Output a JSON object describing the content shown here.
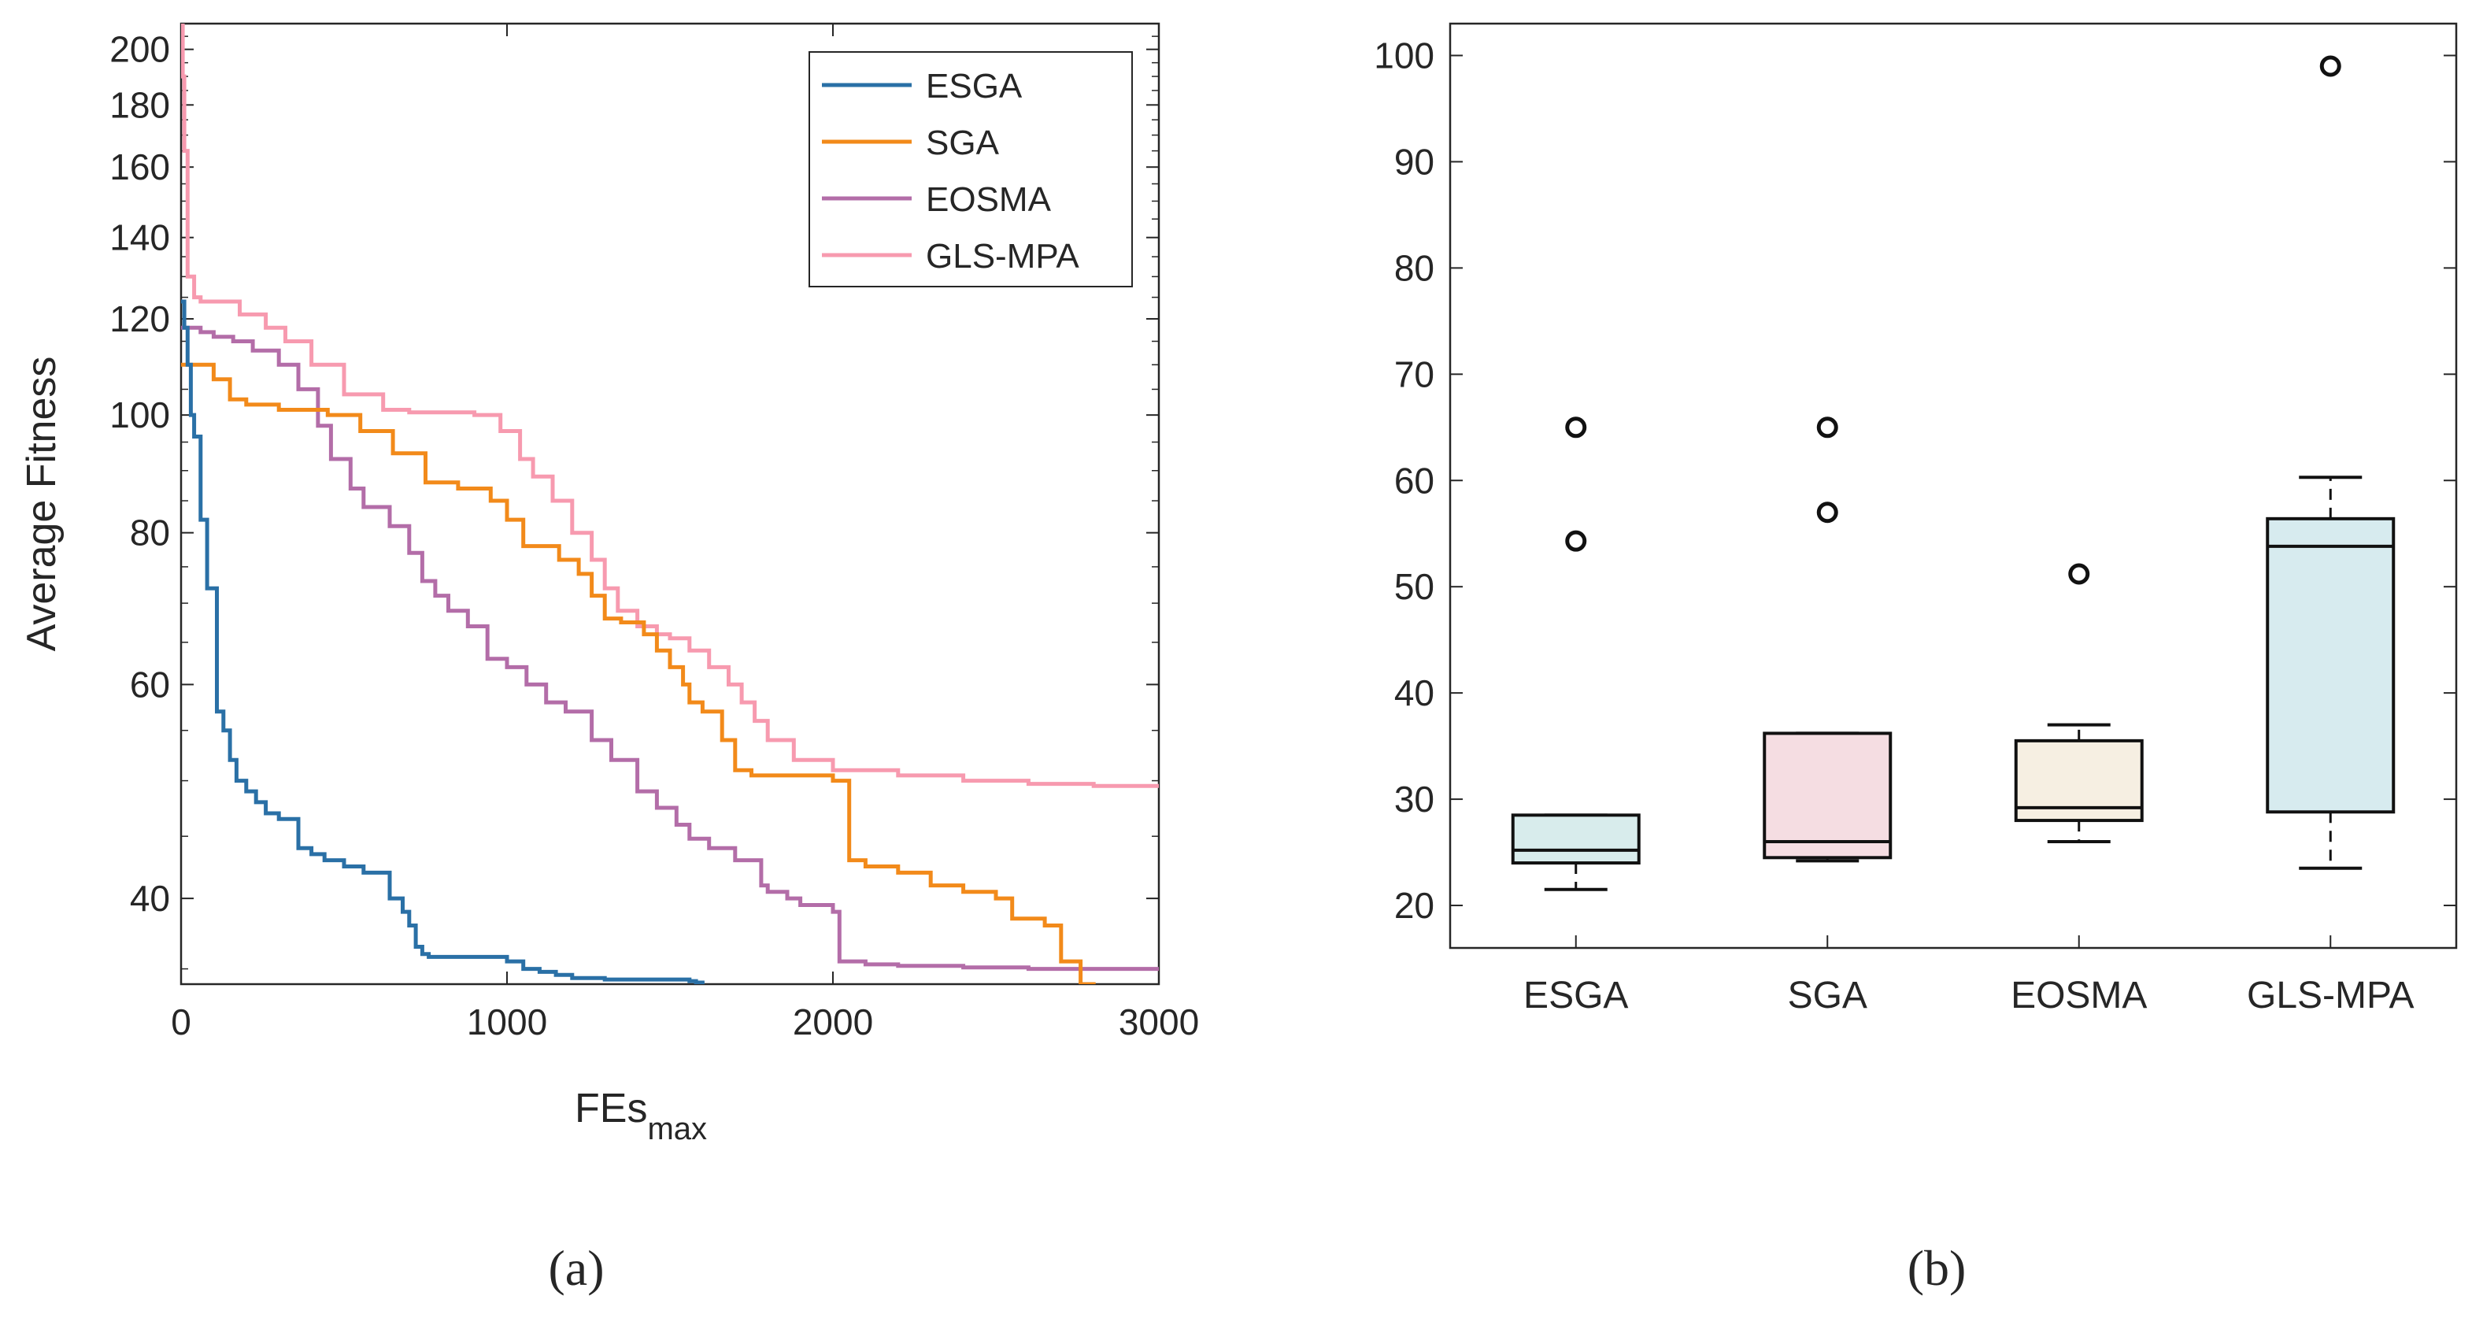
{
  "chart_data": [
    {
      "id": "a",
      "type": "line",
      "y_scale": "log",
      "xlabel": "FEs",
      "xlabel_sub": "max",
      "ylabel": "Average Fitness",
      "xlim": [
        0,
        3000
      ],
      "ylim": [
        34,
        210
      ],
      "xticks": [
        0,
        1000,
        2000,
        3000
      ],
      "xtick_labels": [
        "0",
        "1000",
        "2000",
        "3000"
      ],
      "yticks": [
        40,
        60,
        80,
        100,
        120,
        140,
        160,
        180,
        200
      ],
      "ytick_labels": [
        "40",
        "60",
        "80",
        "100",
        "120",
        "140",
        "160",
        "180",
        "200"
      ],
      "legend_position": "top-right",
      "panel_label": "(a)",
      "series": [
        {
          "name": "ESGA",
          "color": "#2a70a6",
          "x": [
            0,
            10,
            20,
            30,
            40,
            60,
            80,
            110,
            130,
            150,
            170,
            200,
            230,
            260,
            300,
            360,
            400,
            440,
            500,
            560,
            640,
            680,
            700,
            720,
            740,
            760,
            1000,
            1050,
            1100,
            1150,
            1200,
            1300,
            1560,
            1580,
            1600,
            1620,
            1640,
            1700,
            1750,
            3000
          ],
          "y": [
            124,
            118,
            110,
            100,
            96,
            82,
            72,
            57,
            55,
            52,
            50,
            49,
            48,
            47,
            46.5,
            44,
            43.5,
            43,
            42.5,
            42,
            40,
            39,
            38,
            36.5,
            36,
            35.8,
            35.5,
            35,
            34.8,
            34.6,
            34.4,
            34.3,
            34.2,
            34.1,
            33.6,
            33.3,
            33.2,
            33.1,
            33.0,
            33.0
          ]
        },
        {
          "name": "SGA",
          "color": "#f28a1a",
          "x": [
            0,
            100,
            150,
            200,
            300,
            450,
            550,
            650,
            750,
            850,
            950,
            1000,
            1050,
            1100,
            1160,
            1220,
            1260,
            1300,
            1350,
            1420,
            1460,
            1500,
            1540,
            1560,
            1600,
            1660,
            1700,
            1750,
            2000,
            2050,
            2100,
            2200,
            2300,
            2400,
            2500,
            2550,
            2650,
            2700,
            2760,
            2800,
            2900,
            3000
          ],
          "y": [
            110,
            107,
            103,
            102,
            101,
            100,
            97,
            93,
            88,
            87,
            85,
            82,
            78,
            78,
            76,
            74,
            71,
            68,
            67.5,
            66,
            64,
            62,
            60,
            58,
            57,
            54,
            51,
            50.5,
            50,
            43,
            42.5,
            42,
            41,
            40.5,
            40,
            38.5,
            38,
            35.5,
            34,
            33.5,
            33.2,
            33.2
          ]
        },
        {
          "name": "EOSMA",
          "color": "#b36da8",
          "x": [
            0,
            60,
            100,
            160,
            220,
            300,
            360,
            420,
            460,
            520,
            560,
            640,
            700,
            740,
            780,
            820,
            880,
            940,
            1000,
            1060,
            1120,
            1180,
            1260,
            1320,
            1400,
            1460,
            1520,
            1560,
            1620,
            1700,
            1780,
            1800,
            1860,
            1900,
            2000,
            2020,
            2100,
            2200,
            2400,
            2600,
            3000
          ],
          "y": [
            118,
            117,
            116,
            115,
            113,
            110,
            105,
            98,
            92,
            87,
            84,
            81,
            77,
            73,
            71,
            69,
            67,
            63,
            62,
            60,
            58,
            57,
            54,
            52,
            49,
            47.5,
            46,
            44.8,
            44,
            43,
            41,
            40.5,
            40,
            39.5,
            39,
            35.5,
            35.3,
            35.2,
            35.1,
            35.0,
            35.0
          ]
        },
        {
          "name": "GLS-MPA",
          "color": "#f79aaf",
          "x": [
            0,
            5,
            10,
            20,
            40,
            60,
            180,
            260,
            320,
            400,
            500,
            620,
            700,
            900,
            980,
            1040,
            1080,
            1140,
            1200,
            1260,
            1300,
            1340,
            1400,
            1460,
            1500,
            1560,
            1620,
            1680,
            1720,
            1760,
            1800,
            1880,
            2000,
            2200,
            2400,
            2600,
            2800,
            3000
          ],
          "y": [
            210,
            190,
            165,
            130,
            125,
            124,
            121,
            118,
            115,
            110,
            104,
            101,
            100.5,
            100,
            97,
            92,
            89,
            85,
            80,
            76,
            72,
            69,
            67,
            66,
            65.5,
            64,
            62,
            60,
            58,
            56,
            54,
            52,
            51,
            50.5,
            50,
            49.7,
            49.5,
            49.5
          ]
        }
      ]
    },
    {
      "id": "b",
      "type": "box",
      "ylim": [
        16,
        103
      ],
      "yticks": [
        20,
        30,
        40,
        50,
        60,
        70,
        80,
        90,
        100
      ],
      "ytick_labels": [
        "20",
        "30",
        "40",
        "50",
        "60",
        "70",
        "80",
        "90",
        "100"
      ],
      "categories": [
        "ESGA",
        "SGA",
        "EOSMA",
        "GLS-MPA"
      ],
      "panel_label": "(b)",
      "boxes": [
        {
          "name": "ESGA",
          "whisker_low": 21.5,
          "q1": 24,
          "median": 25.2,
          "q3": 28.5,
          "whisker_high": 28.5,
          "outliers": [
            54.3,
            65
          ],
          "fill": "#d8ecec"
        },
        {
          "name": "SGA",
          "whisker_low": 24.2,
          "q1": 24.5,
          "median": 26,
          "q3": 36.2,
          "whisker_high": 36.2,
          "outliers": [
            57,
            65
          ],
          "fill": "#f5dde2"
        },
        {
          "name": "EOSMA",
          "whisker_low": 26,
          "q1": 28,
          "median": 29.2,
          "q3": 35.5,
          "whisker_high": 37,
          "outliers": [
            51.2
          ],
          "fill": "#f6efe2"
        },
        {
          "name": "GLS-MPA",
          "whisker_low": 23.5,
          "q1": 28.8,
          "median": 53.8,
          "q3": 56.4,
          "whisker_high": 60.3,
          "outliers": [
            99
          ],
          "fill": "#d7ebef"
        }
      ]
    }
  ]
}
